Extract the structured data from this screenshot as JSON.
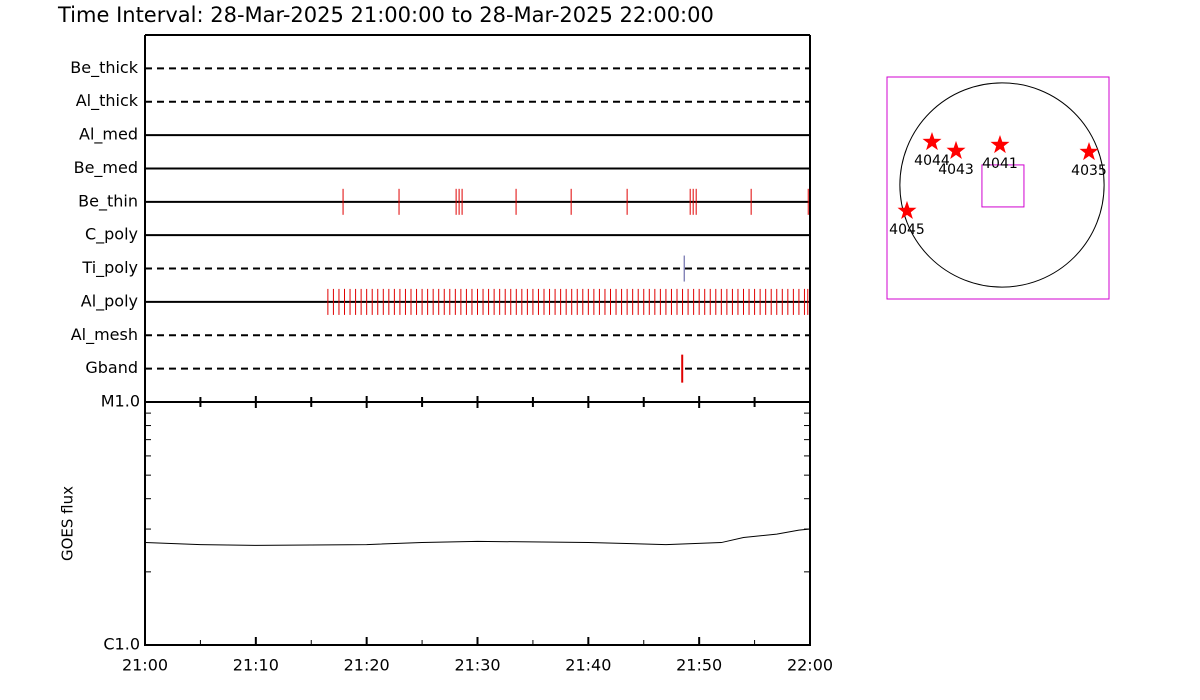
{
  "title": "Time Interval: 28-Mar-2025 21:00:00 to 28-Mar-2025 22:00:00",
  "chart_data": [
    {
      "type": "timeline",
      "xlim": [
        0,
        60
      ],
      "rows": [
        {
          "name": "Be_thick",
          "style": "dashed",
          "events": []
        },
        {
          "name": "Al_thick",
          "style": "dashed",
          "events": []
        },
        {
          "name": "Al_med",
          "style": "solid",
          "events": []
        },
        {
          "name": "Be_med",
          "style": "solid",
          "events": []
        },
        {
          "name": "Be_thin",
          "style": "solid",
          "color": "#e00000",
          "events": [
            17.87,
            22.92,
            28.07,
            28.34,
            28.61,
            33.48,
            38.45,
            43.5,
            49.19,
            49.46,
            49.73,
            54.69,
            59.84
          ]
        },
        {
          "name": "C_poly",
          "style": "solid",
          "events": []
        },
        {
          "name": "Ti_poly",
          "style": "dashed",
          "color": "#50509a",
          "events": [
            48.65
          ]
        },
        {
          "name": "Al_poly",
          "style": "solid",
          "color": "#e00000",
          "events": [
            16.5,
            17,
            17.5,
            18,
            18.5,
            19,
            19.5,
            20,
            20.5,
            21,
            21.5,
            22,
            22.5,
            23,
            23.5,
            24,
            24.5,
            25,
            25.5,
            26,
            26.5,
            27,
            27.5,
            28,
            28.5,
            29,
            29.5,
            30,
            30.5,
            31,
            31.5,
            32,
            32.5,
            33,
            33.5,
            34,
            34.5,
            35,
            35.5,
            36,
            36.5,
            37,
            37.5,
            38,
            38.5,
            39,
            39.5,
            40,
            40.5,
            41,
            41.5,
            42,
            42.5,
            43,
            43.5,
            44,
            44.5,
            45,
            45.5,
            46,
            46.5,
            47,
            47.5,
            48,
            48.5,
            49,
            49.5,
            50,
            50.5,
            51,
            51.5,
            52,
            52.5,
            53,
            53.5,
            54,
            54.5,
            55,
            55.5,
            56,
            56.5,
            57,
            57.5,
            58,
            58.5,
            59,
            59.5,
            59.8
          ]
        },
        {
          "name": "Al_mesh",
          "style": "dashed",
          "events": []
        },
        {
          "name": "Gband",
          "style": "dashed",
          "color": "#e00000",
          "events": [
            48.47
          ]
        }
      ]
    },
    {
      "type": "line",
      "ylabel": "GOES flux",
      "log_scale": true,
      "xlim": [
        0,
        60
      ],
      "xticks": [
        {
          "value": 0,
          "label": "21:00"
        },
        {
          "value": 10,
          "label": "21:10"
        },
        {
          "value": 20,
          "label": "21:20"
        },
        {
          "value": 30,
          "label": "21:30"
        },
        {
          "value": 40,
          "label": "21:40"
        },
        {
          "value": 50,
          "label": "21:50"
        },
        {
          "value": 60,
          "label": "22:00"
        }
      ],
      "xminor": [
        5,
        15,
        25,
        35,
        45,
        55
      ],
      "ylim": [
        1e-06,
        1e-05
      ],
      "yticks": [
        {
          "value": 1e-06,
          "label": "C1.0"
        },
        {
          "value": 1e-05,
          "label": "M1.0"
        }
      ],
      "yminor": [
        2e-06,
        3e-06,
        4e-06,
        5e-06,
        6e-06,
        7e-06,
        8e-06,
        9e-06
      ],
      "x": [
        0,
        5,
        10,
        20,
        25,
        30,
        40,
        47,
        52,
        54,
        57,
        59,
        60
      ],
      "series": [
        {
          "color": "#000000",
          "values": [
            2.64e-06,
            2.59e-06,
            2.57e-06,
            2.59e-06,
            2.64e-06,
            2.67e-06,
            2.64e-06,
            2.59e-06,
            2.64e-06,
            2.77e-06,
            2.86e-06,
            2.97e-06,
            3e-06
          ]
        }
      ]
    },
    {
      "type": "map",
      "xlim": [
        -1081,
        1006
      ],
      "ylim": [
        -1072,
        1015
      ],
      "disk_radius": 960,
      "frame_color": "#d000d0",
      "points": {
        "color": "#ff0000",
        "labels": [
          "4044",
          "4043",
          "4041",
          "4035",
          "4045"
        ],
        "x": [
          -658,
          -432,
          -19,
          818,
          -893
        ],
        "y": [
          404,
          320,
          376,
          310,
          -244
        ]
      },
      "fov": {
        "x": 9,
        "y": -9,
        "width": 395,
        "height": 395
      }
    }
  ]
}
